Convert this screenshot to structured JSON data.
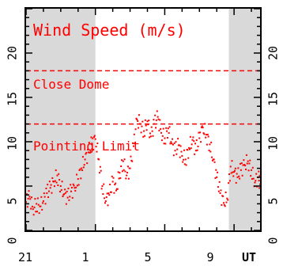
{
  "chart_data": {
    "type": "scatter",
    "title": "Wind Speed (m/s)",
    "xlabel": "UT",
    "ylabel": "",
    "xlim": [
      21,
      10.5
    ],
    "ylim": [
      0,
      25
    ],
    "x_tick_labels": [
      "21",
      "1",
      "5",
      "9",
      "UT"
    ],
    "y_tick_labels": [
      "0",
      "5",
      "10",
      "15",
      "20"
    ],
    "night_shading": [
      {
        "from": 21,
        "to": 1
      },
      {
        "from": 8.7,
        "to": 10.5
      }
    ],
    "thresholds": [
      {
        "label": "Close Dome",
        "value": 18
      },
      {
        "label": "Pointing Limit",
        "value": 12
      }
    ],
    "series": [
      {
        "color": "#ff0000",
        "points": [
          [
            21.0,
            3.2
          ],
          [
            21.2,
            3.8
          ],
          [
            21.4,
            2.4
          ],
          [
            21.6,
            3.0
          ],
          [
            21.8,
            2.7
          ],
          [
            22.0,
            3.3
          ],
          [
            22.2,
            4.2
          ],
          [
            22.4,
            4.8
          ],
          [
            22.6,
            5.5
          ],
          [
            22.8,
            6.2
          ],
          [
            23.0,
            5.0
          ],
          [
            23.2,
            4.1
          ],
          [
            23.4,
            3.7
          ],
          [
            23.6,
            4.4
          ],
          [
            23.8,
            4.8
          ],
          [
            0.0,
            5.8
          ],
          [
            0.2,
            7.0
          ],
          [
            0.4,
            8.0
          ],
          [
            0.6,
            8.8
          ],
          [
            0.8,
            9.8
          ],
          [
            1.0,
            10.3
          ],
          [
            1.2,
            8.0
          ],
          [
            1.4,
            5.0
          ],
          [
            1.6,
            3.3
          ],
          [
            1.8,
            4.0
          ],
          [
            2.0,
            5.5
          ],
          [
            2.2,
            4.5
          ],
          [
            2.4,
            6.5
          ],
          [
            2.6,
            7.8
          ],
          [
            2.8,
            6.2
          ],
          [
            3.0,
            7.0
          ],
          [
            3.2,
            9.5
          ],
          [
            3.4,
            12.5
          ],
          [
            3.6,
            12.0
          ],
          [
            3.8,
            11.2
          ],
          [
            4.0,
            12.3
          ],
          [
            4.2,
            10.6
          ],
          [
            4.4,
            12.0
          ],
          [
            4.6,
            12.8
          ],
          [
            4.8,
            11.0
          ],
          [
            5.0,
            10.4
          ],
          [
            5.2,
            11.5
          ],
          [
            5.4,
            9.8
          ],
          [
            5.6,
            9.0
          ],
          [
            5.8,
            9.6
          ],
          [
            6.0,
            8.4
          ],
          [
            6.2,
            8.0
          ],
          [
            6.4,
            9.3
          ],
          [
            6.6,
            10.2
          ],
          [
            6.8,
            9.0
          ],
          [
            7.0,
            10.4
          ],
          [
            7.2,
            11.6
          ],
          [
            7.4,
            10.8
          ],
          [
            7.6,
            9.7
          ],
          [
            7.8,
            8.0
          ],
          [
            8.0,
            6.0
          ],
          [
            8.2,
            4.2
          ],
          [
            8.4,
            3.1
          ],
          [
            8.6,
            3.6
          ],
          [
            8.8,
            7.2
          ],
          [
            9.0,
            6.6
          ],
          [
            9.2,
            6.0
          ],
          [
            9.4,
            6.8
          ],
          [
            9.6,
            7.4
          ],
          [
            9.8,
            7.8
          ],
          [
            10.0,
            6.8
          ],
          [
            10.2,
            5.4
          ],
          [
            10.4,
            6.0
          ],
          [
            10.5,
            5.2
          ]
        ]
      }
    ]
  }
}
